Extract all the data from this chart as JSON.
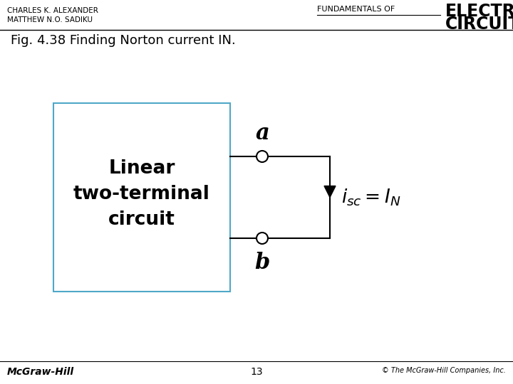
{
  "bg_color": "#ffffff",
  "header_left_line1": "CHARLES K. ALEXANDER",
  "header_left_line2": "MATTHEW N.O. SADIKU",
  "header_right_pre": "FUNDAMENTALS OF",
  "header_right_bold1": "ELECTRIC",
  "header_right_bold2": "CIRCUITS",
  "fig_caption": "Fig. 4.38 Finding Norton current IN.",
  "box_label_line1": "Linear",
  "box_label_line2": "two-terminal",
  "box_label_line3": "circuit",
  "terminal_a": "a",
  "terminal_b": "b",
  "footer_left": "McGraw-Hill",
  "footer_center": "13",
  "footer_right": "© The McGraw-Hill Companies, Inc.",
  "box_color": "#4fa8c8",
  "wire_color": "#000000",
  "arrow_color": "#000000",
  "text_color": "#000000"
}
